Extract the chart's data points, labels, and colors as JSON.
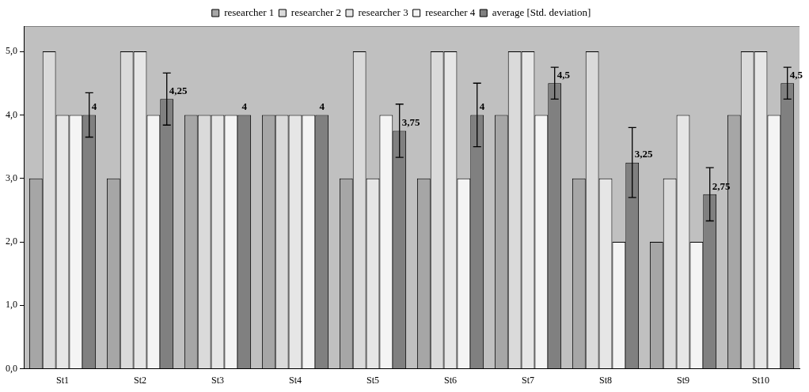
{
  "chart_data": {
    "type": "bar",
    "categories": [
      "St1",
      "St2",
      "St3",
      "St4",
      "St5",
      "St6",
      "St7",
      "St8",
      "St9",
      "St10"
    ],
    "series": [
      {
        "name": "researcher 1",
        "color": "#a6a6a6",
        "values": [
          3,
          3,
          4,
          4,
          3,
          3,
          4,
          3,
          2,
          4
        ]
      },
      {
        "name": "researcher 2",
        "color": "#dadada",
        "values": [
          5,
          5,
          4,
          4,
          5,
          5,
          5,
          5,
          3,
          5
        ]
      },
      {
        "name": "researcher 3",
        "color": "#e6e6e6",
        "values": [
          4,
          5,
          4,
          4,
          3,
          5,
          5,
          3,
          4,
          5
        ]
      },
      {
        "name": "researcher 4",
        "color": "#f4f4f4",
        "values": [
          4,
          4,
          4,
          4,
          4,
          3,
          4,
          2,
          2,
          4
        ]
      },
      {
        "name": "average [Std. deviation]",
        "color": "#808080",
        "values": [
          4,
          4.25,
          4,
          4,
          3.75,
          4,
          4.5,
          3.25,
          2.75,
          4.5
        ],
        "errors": [
          0.35,
          0.41,
          0,
          0,
          0.42,
          0.5,
          0.25,
          0.55,
          0.42,
          0.25
        ],
        "value_labels": [
          "4",
          "4,25",
          "4",
          "4",
          "3,75",
          "4",
          "4,5",
          "3,25",
          "2,75",
          "4,5"
        ]
      }
    ],
    "ylim": [
      0,
      5.4
    ],
    "yticks": [
      {
        "value": 0,
        "label": "0,0"
      },
      {
        "value": 1,
        "label": "1,0"
      },
      {
        "value": 2,
        "label": "2,0"
      },
      {
        "value": 3,
        "label": "3,0"
      },
      {
        "value": 4,
        "label": "4,0"
      },
      {
        "value": 5,
        "label": "5,0"
      }
    ],
    "grid": false,
    "legend": "top"
  }
}
